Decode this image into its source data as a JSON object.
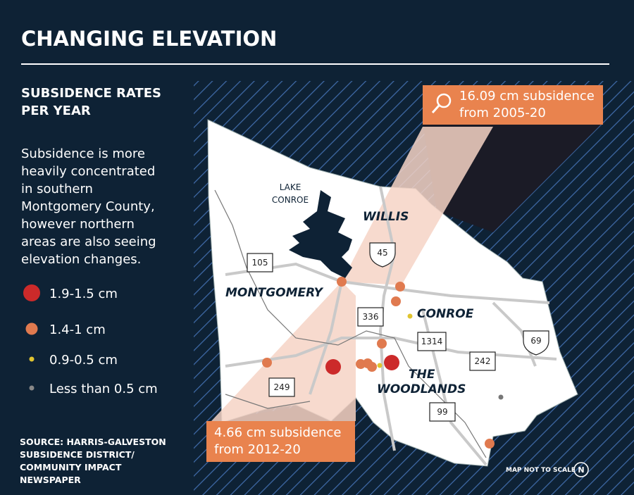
{
  "header": {
    "title": "CHANGING ELEVATION"
  },
  "sidebar": {
    "heading": [
      "SUBSIDENCE RATES",
      "PER YEAR"
    ],
    "description": [
      "Subsidence is more",
      "heavily concentrated",
      "in southern",
      "Montgomery County,",
      "however northern",
      "areas are also seeing",
      "elevation changes."
    ],
    "legend": [
      "1.9-1.5 cm",
      "1.4-1 cm",
      "0.9-0.5 cm",
      "Less than 0.5 cm"
    ],
    "source": [
      "SOURCE: HARRIS-GALVESTON",
      "SUBSIDENCE DISTRICT/",
      "COMMUNITY IMPACT",
      "NEWSPAPER"
    ]
  },
  "map": {
    "callouts": [
      [
        "16.09 cm subsidence",
        "from 2005-20"
      ],
      [
        "4.66 cm subsidence",
        "from 2012-20"
      ]
    ],
    "places": {
      "lake": [
        "LAKE",
        "CONROE"
      ],
      "willis": "WILLIS",
      "montgomery": "MONTGOMERY",
      "conroe": "CONROE",
      "woodlands": [
        "THE",
        "WOODLANDS"
      ]
    },
    "highways": [
      "105",
      "45",
      "336",
      "1314",
      "242",
      "69",
      "249",
      "99"
    ],
    "note": "MAP NOT TO SCALE",
    "north": "N"
  }
}
